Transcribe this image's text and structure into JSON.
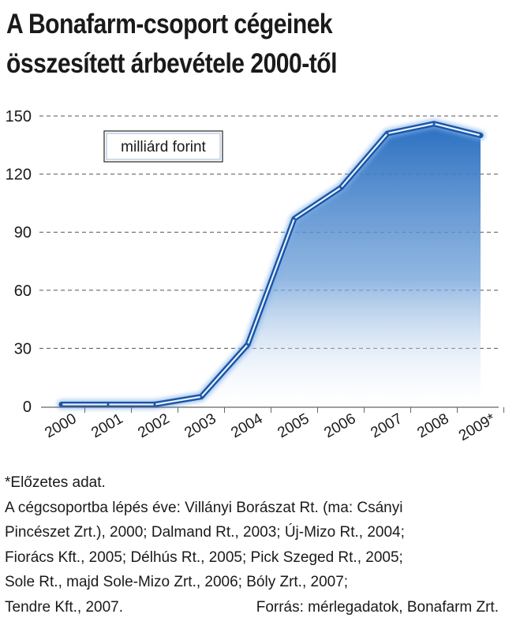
{
  "title_lines": [
    "A Bonafarm-csoport cégeinek",
    "összesített árbevétele 2000-től"
  ],
  "chart_data": {
    "type": "area",
    "title": "A Bonafarm-csoport cégeinek összesített árbevétele 2000-től",
    "unit_label": "milliárd forint",
    "categories": [
      "2000",
      "2001",
      "2002",
      "2003",
      "2004",
      "2005",
      "2006",
      "2007",
      "2008",
      "2009*"
    ],
    "values": [
      1,
      1,
      1,
      5,
      32,
      97,
      113,
      141,
      146,
      140
    ],
    "ylim": [
      0,
      150
    ],
    "yticks": [
      0,
      30,
      60,
      90,
      120,
      150
    ],
    "xlabel": "",
    "ylabel": "",
    "grid": "horizontal dashed",
    "colors": {
      "line": "#1f5fb0",
      "fill_top": "#2a6fc0",
      "fill_bottom": "#ffffff"
    }
  },
  "notes": {
    "footnote": "*Előzetes adat.",
    "lines": [
      "A cégcsoportba lépés éve: Villányi Borászat Rt. (ma: Csányi",
      "Pincészet Zrt.), 2000; Dalmand Rt., 2003; Új-Mizo Rt., 2004;",
      "Fiorács Kft., 2005; Délhús Rt., 2005; Pick Szeged Rt., 2005;",
      "Sole Rt., majd Sole-Mizo Zrt., 2006; Bóly Zrt., 2007;"
    ],
    "last_line": "Tendre Kft., 2007.",
    "source": "Forrás: mérlegadatok, Bonafarm Zrt."
  }
}
